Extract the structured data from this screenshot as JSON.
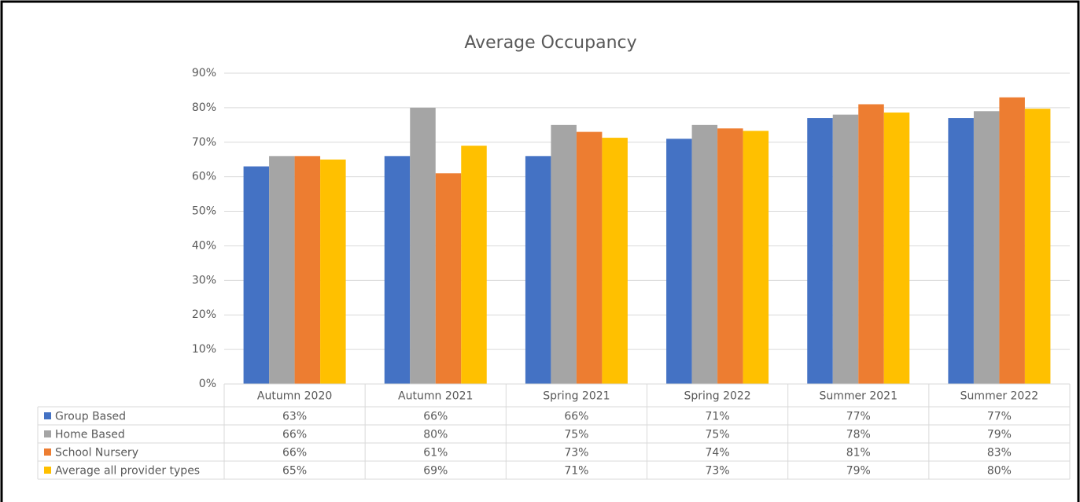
{
  "chart_data": {
    "type": "bar",
    "title": "Average Occupancy",
    "categories": [
      "Autumn 2020",
      "Autumn 2021",
      "Spring 2021",
      "Spring 2022",
      "Summer 2021",
      "Summer 2022"
    ],
    "series": [
      {
        "name": "Group Based",
        "color": "#4472c4",
        "values": [
          63,
          66,
          66,
          71,
          77,
          77
        ],
        "value_labels": [
          "63%",
          "66%",
          "66%",
          "71%",
          "77%",
          "77%"
        ]
      },
      {
        "name": "Home Based",
        "color": "#a5a5a5",
        "values": [
          66,
          80,
          75,
          75,
          78,
          79
        ],
        "value_labels": [
          "66%",
          "80%",
          "75%",
          "75%",
          "78%",
          "79%"
        ]
      },
      {
        "name": "School Nursery",
        "color": "#ed7d31",
        "values": [
          66,
          61,
          73,
          74,
          81,
          83
        ],
        "value_labels": [
          "66%",
          "61%",
          "73%",
          "74%",
          "81%",
          "83%"
        ]
      },
      {
        "name": "Average all provider types",
        "color": "#ffc000",
        "values": [
          65,
          69,
          71.3,
          73.3,
          78.6,
          79.7
        ],
        "value_labels": [
          "65%",
          "69%",
          "71%",
          "73%",
          "79%",
          "80%"
        ]
      }
    ],
    "ylim": [
      0,
      90
    ],
    "yticks": [
      {
        "value": 0,
        "label": "0%"
      },
      {
        "value": 10,
        "label": "10%"
      },
      {
        "value": 20,
        "label": "20%"
      },
      {
        "value": 30,
        "label": "30%"
      },
      {
        "value": 40,
        "label": "40%"
      },
      {
        "value": 50,
        "label": "50%"
      },
      {
        "value": 60,
        "label": "60%"
      },
      {
        "value": 70,
        "label": "70%"
      },
      {
        "value": 80,
        "label": "80%"
      },
      {
        "value": 90,
        "label": "90%"
      }
    ],
    "grid": true
  }
}
